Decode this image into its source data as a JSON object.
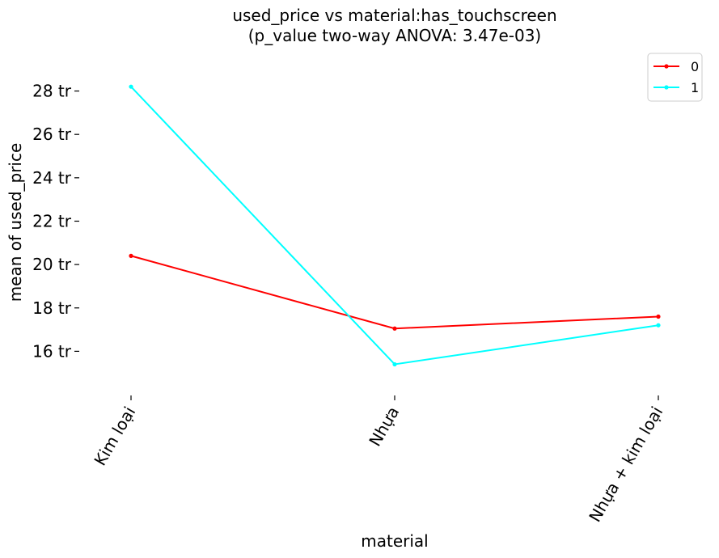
{
  "chart_data": {
    "type": "line",
    "title_line1": "used_price vs material:has_touchscreen",
    "title_line2": "(p_value two-way ANOVA: 3.47e-03)",
    "xlabel": "material",
    "ylabel": "mean of used_price",
    "categories": [
      "Kim loại",
      "Nhựa",
      "Nhựa + kim loại"
    ],
    "y_ticks": [
      16,
      18,
      20,
      22,
      24,
      26,
      28
    ],
    "y_tick_labels": [
      "16 tr",
      "18 tr",
      "20 tr",
      "22 tr",
      "24 tr",
      "26 tr",
      "28 tr"
    ],
    "ylim": [
      14.3,
      29.4
    ],
    "legend_position": "top-right",
    "series": [
      {
        "name": "0",
        "color": "#ff0000",
        "values": [
          20.4,
          17.05,
          17.6
        ]
      },
      {
        "name": "1",
        "color": "#00ffff",
        "values": [
          28.2,
          15.4,
          17.2
        ]
      }
    ]
  }
}
